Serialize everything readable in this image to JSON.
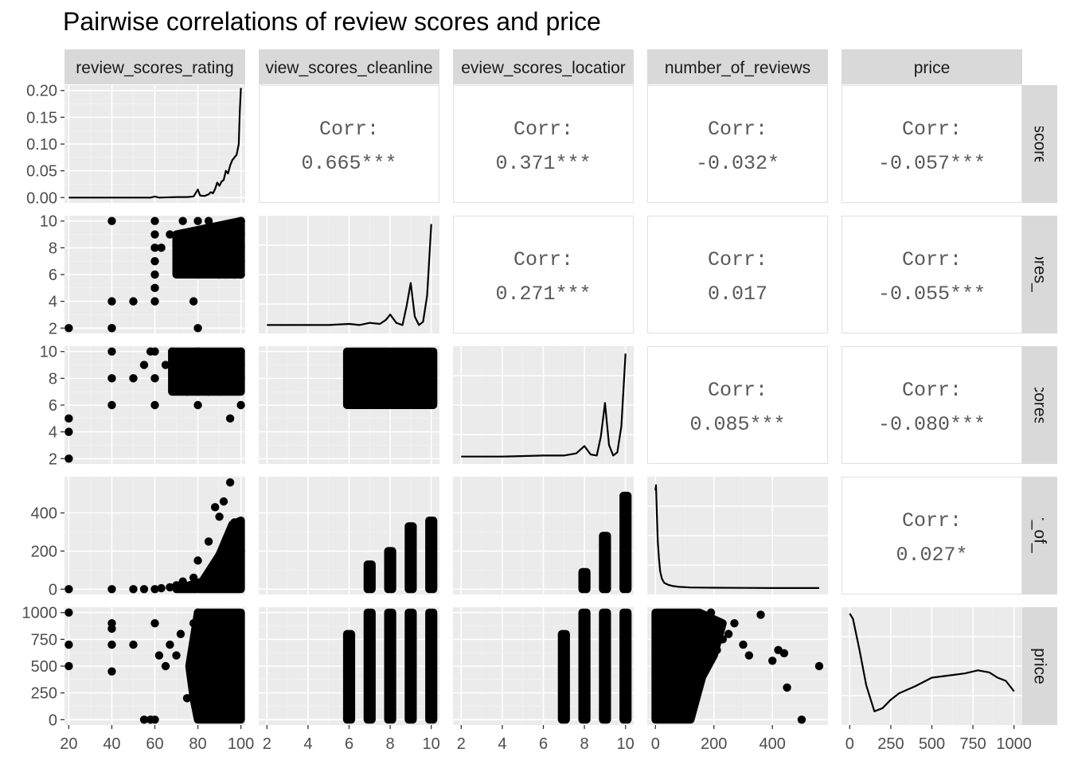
{
  "chart_data": {
    "type": "scatter-matrix",
    "title": "Pairwise correlations of review scores and price",
    "variables": [
      "review_scores_rating",
      "review_scores_cleanliness",
      "review_scores_location",
      "number_of_reviews",
      "price"
    ],
    "strip_labels": {
      "top": [
        "review_scores_rating",
        "view_scores_cleanline",
        "eview_scores_locatior",
        "number_of_reviews",
        "price"
      ],
      "right": [
        "iew_scores_ra",
        "/_scores_clear",
        "w_scores_loc",
        "mber_of_revie",
        "price"
      ]
    },
    "ticks": {
      "review_scores_rating": {
        "range": [
          18,
          102
        ],
        "values": [
          20,
          40,
          60,
          80,
          100
        ],
        "labels": [
          "20",
          "40",
          "60",
          "80",
          "100"
        ]
      },
      "review_scores_cleanliness": {
        "range": [
          1.6,
          10.4
        ],
        "values": [
          2,
          4,
          6,
          8,
          10
        ],
        "labels": [
          "2",
          "4",
          "6",
          "8",
          "10"
        ]
      },
      "review_scores_location": {
        "range": [
          1.6,
          10.4
        ],
        "values": [
          2,
          4,
          6,
          8,
          10
        ],
        "labels": [
          "2",
          "4",
          "6",
          "8",
          "10"
        ]
      },
      "number_of_reviews": {
        "range": [
          -28,
          590
        ],
        "values": [
          0,
          200,
          400
        ],
        "labels": [
          "0",
          "200",
          "400"
        ]
      },
      "price": {
        "range": [
          -50,
          1050
        ],
        "values": [
          0,
          250,
          500,
          750,
          1000
        ],
        "labels": [
          "0",
          "250",
          "500",
          "750",
          "1000"
        ]
      }
    },
    "density_y_axis": {
      "range": [
        -0.01,
        0.21
      ],
      "values": [
        0,
        0.05,
        0.1,
        0.15,
        0.2
      ],
      "labels": [
        "0.00",
        "0.05",
        "0.10",
        "0.15",
        "0.20"
      ]
    },
    "correlations": [
      {
        "row": 0,
        "col": 1,
        "label": "Corr:",
        "value": "0.665***"
      },
      {
        "row": 0,
        "col": 2,
        "label": "Corr:",
        "value": "0.371***"
      },
      {
        "row": 0,
        "col": 3,
        "label": "Corr:",
        "value": "-0.032*"
      },
      {
        "row": 0,
        "col": 4,
        "label": "Corr:",
        "value": "-0.057***"
      },
      {
        "row": 1,
        "col": 2,
        "label": "Corr:",
        "value": "0.271***"
      },
      {
        "row": 1,
        "col": 3,
        "label": "Corr:",
        "value": "0.017"
      },
      {
        "row": 1,
        "col": 4,
        "label": "Corr:",
        "value": "-0.055***"
      },
      {
        "row": 2,
        "col": 3,
        "label": "Corr:",
        "value": "0.085***"
      },
      {
        "row": 2,
        "col": 4,
        "label": "Corr:",
        "value": "-0.080***"
      },
      {
        "row": 3,
        "col": 4,
        "label": "Corr:",
        "value": "0.027*"
      }
    ],
    "densities": [
      {
        "variable": "review_scores_rating",
        "x": [
          20,
          30,
          40,
          50,
          58,
          60,
          62,
          70,
          75,
          78,
          80,
          81,
          83,
          85,
          86,
          87,
          88,
          89,
          90,
          91,
          92,
          93,
          94,
          95,
          96,
          97,
          98,
          99,
          99.5,
          100
        ],
        "y": [
          0,
          0,
          0,
          0,
          0,
          0.002,
          0,
          0.001,
          0.001,
          0.002,
          0.015,
          0.004,
          0.003,
          0.006,
          0.01,
          0.008,
          0.016,
          0.028,
          0.022,
          0.03,
          0.033,
          0.05,
          0.045,
          0.06,
          0.07,
          0.075,
          0.08,
          0.1,
          0.16,
          0.205
        ]
      },
      {
        "variable": "review_scores_cleanliness",
        "x": [
          2,
          3,
          4,
          5,
          6,
          6.5,
          7,
          7.5,
          7.8,
          8,
          8.3,
          8.6,
          8.8,
          9,
          9.2,
          9.4,
          9.6,
          9.8,
          10
        ],
        "y": [
          0.02,
          0.02,
          0.02,
          0.02,
          0.03,
          0.02,
          0.04,
          0.03,
          0.07,
          0.12,
          0.04,
          0.02,
          0.2,
          0.42,
          0.1,
          0.02,
          0.05,
          0.3,
          0.98
        ]
      },
      {
        "variable": "review_scores_location",
        "x": [
          2,
          4,
          6,
          7,
          7.6,
          8,
          8.3,
          8.6,
          8.8,
          9,
          9.2,
          9.4,
          9.6,
          9.8,
          10
        ],
        "y": [
          0.01,
          0.01,
          0.02,
          0.02,
          0.04,
          0.11,
          0.03,
          0.02,
          0.2,
          0.52,
          0.12,
          0.02,
          0.05,
          0.3,
          0.99
        ]
      },
      {
        "variable": "number_of_reviews",
        "x": [
          0,
          2,
          5,
          8,
          12,
          16,
          22,
          30,
          45,
          60,
          80,
          120,
          200,
          300,
          400,
          500,
          560
        ],
        "y": [
          0.93,
          0.98,
          0.7,
          0.45,
          0.28,
          0.16,
          0.09,
          0.05,
          0.03,
          0.02,
          0.012,
          0.006,
          0.004,
          0.002,
          0.001,
          0.0005,
          0.0005
        ]
      },
      {
        "variable": "price",
        "x": [
          0,
          20,
          60,
          100,
          150,
          200,
          250,
          300,
          400,
          500,
          600,
          700,
          780,
          850,
          900,
          950,
          1000
        ],
        "y": [
          1,
          0.95,
          0.65,
          0.32,
          0.07,
          0.1,
          0.18,
          0.24,
          0.31,
          0.39,
          0.41,
          0.43,
          0.46,
          0.44,
          0.39,
          0.36,
          0.26
        ]
      }
    ],
    "scatter": {
      "review_scores_rating_vs_cleanliness": {
        "x": [
          20,
          40,
          40,
          40,
          40,
          50,
          60,
          60,
          60,
          60,
          60,
          60,
          60,
          63,
          67,
          70,
          73,
          78,
          80,
          80,
          80,
          80,
          80,
          80,
          80,
          80,
          85,
          90,
          93,
          97,
          100,
          100,
          100,
          100,
          100,
          100
        ],
        "y": [
          2,
          10,
          4,
          2,
          2,
          4,
          10,
          9,
          8,
          7,
          6,
          5,
          4,
          8,
          9,
          8,
          10,
          4,
          2,
          10,
          9,
          8,
          7,
          6,
          8,
          7,
          10,
          6,
          6,
          6,
          10,
          9,
          8,
          7,
          6,
          10
        ]
      },
      "review_scores_rating_vs_location": {
        "x": [
          20,
          20,
          20,
          40,
          40,
          40,
          50,
          55,
          58,
          60,
          60,
          60,
          65,
          68,
          70,
          75,
          80,
          80,
          80,
          80,
          85,
          90,
          95,
          97,
          100,
          100,
          100,
          100
        ],
        "y": [
          5,
          4,
          2,
          10,
          8,
          6,
          8,
          9,
          10,
          10,
          8,
          6,
          9,
          10,
          8,
          7,
          10,
          8,
          7,
          6,
          7,
          7,
          5,
          9,
          10,
          9,
          8,
          6
        ]
      },
      "review_scores_rating_vs_number_of_reviews": {
        "x": [
          20,
          40,
          50,
          55,
          60,
          63,
          67,
          70,
          73,
          78,
          80,
          85,
          88,
          90,
          92,
          95,
          97,
          98,
          100
        ],
        "y": [
          0,
          0,
          0,
          0,
          0,
          5,
          10,
          20,
          40,
          60,
          150,
          250,
          430,
          380,
          460,
          560,
          350,
          300,
          200
        ]
      },
      "review_scores_rating_vs_price": {
        "x": [
          20,
          20,
          20,
          40,
          40,
          40,
          40,
          50,
          55,
          58,
          60,
          60,
          62,
          65,
          67,
          70,
          72,
          75,
          78,
          80,
          82,
          84,
          86
        ],
        "y": [
          1000,
          700,
          500,
          900,
          850,
          700,
          450,
          700,
          0,
          0,
          900,
          0,
          600,
          500,
          700,
          600,
          800,
          200,
          900,
          1000,
          100,
          700,
          300
        ]
      },
      "number_of_reviews_vs_price": {
        "x": [
          250,
          300,
          320,
          360,
          400,
          420,
          440,
          450,
          500,
          560,
          270,
          230,
          210,
          190,
          160,
          130,
          110,
          90,
          70,
          50,
          40
        ],
        "y": [
          800,
          700,
          600,
          980,
          550,
          650,
          620,
          300,
          0,
          500,
          900,
          750,
          650,
          1000,
          900,
          700,
          500,
          350,
          250,
          150,
          100
        ]
      }
    }
  }
}
